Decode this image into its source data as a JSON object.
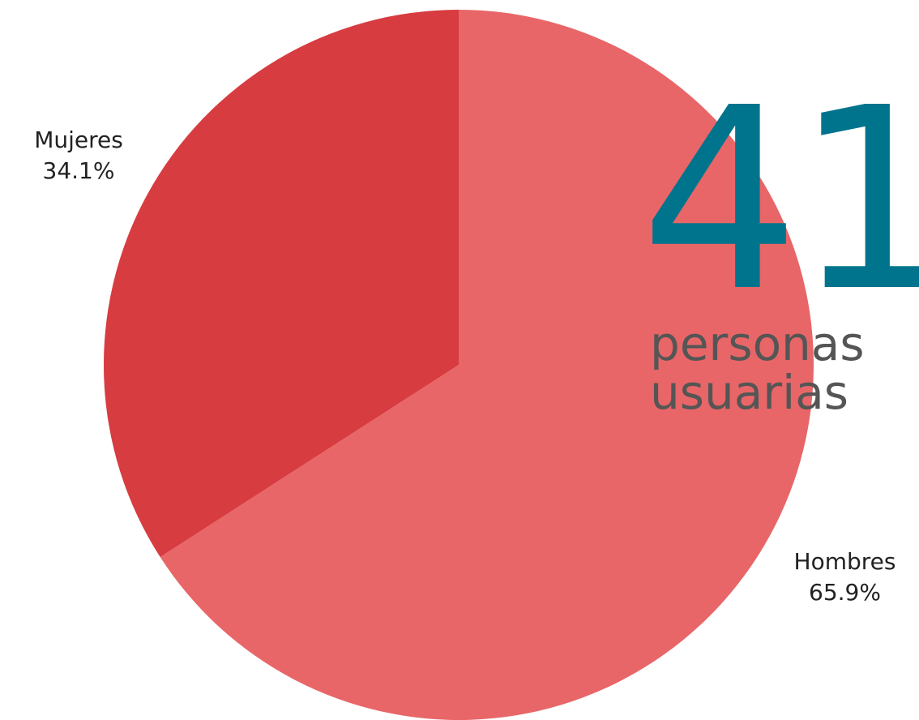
{
  "chart_data": {
    "type": "pie",
    "title": "",
    "slices": [
      {
        "label": "Hombres",
        "value": 65.9,
        "value_label": "65.9%",
        "color": "#e86668"
      },
      {
        "label": "Mujeres",
        "value": 34.1,
        "value_label": "34.1%",
        "color": "#d73c40"
      }
    ],
    "start_angle_deg": 0,
    "direction": "clockwise",
    "legend": "none",
    "data_labels": "outside"
  },
  "callout": {
    "number": "41",
    "caption_line1": "personas",
    "caption_line2": "usuarias",
    "number_color": "#00748d",
    "caption_color": "#555555"
  }
}
